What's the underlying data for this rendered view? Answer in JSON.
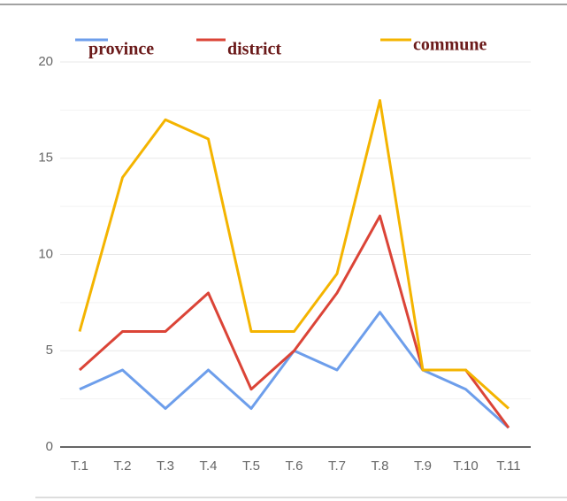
{
  "chart_data": {
    "type": "line",
    "categories": [
      "T.1",
      "T.2",
      "T.3",
      "T.4",
      "T.5",
      "T.6",
      "T.7",
      "T.8",
      "T.9",
      "T.10",
      "T.11"
    ],
    "series": [
      {
        "name": "province",
        "color": "#6d9eeb",
        "values": [
          3,
          4,
          2,
          4,
          2,
          5,
          4,
          7,
          4,
          3,
          1
        ]
      },
      {
        "name": "district",
        "color": "#db4437",
        "values": [
          4,
          6,
          6,
          8,
          3,
          5,
          8,
          12,
          4,
          4,
          1
        ]
      },
      {
        "name": "commune",
        "color": "#f4b400",
        "values": [
          6,
          14,
          17,
          16,
          6,
          6,
          9,
          18,
          4,
          4,
          2
        ]
      }
    ],
    "ylim": [
      0,
      20
    ],
    "yticks": [
      0,
      5,
      10,
      15,
      20
    ],
    "minor_yticks": [
      2.5,
      7.5,
      12.5,
      17.5
    ],
    "grid": true,
    "legend": "top"
  }
}
